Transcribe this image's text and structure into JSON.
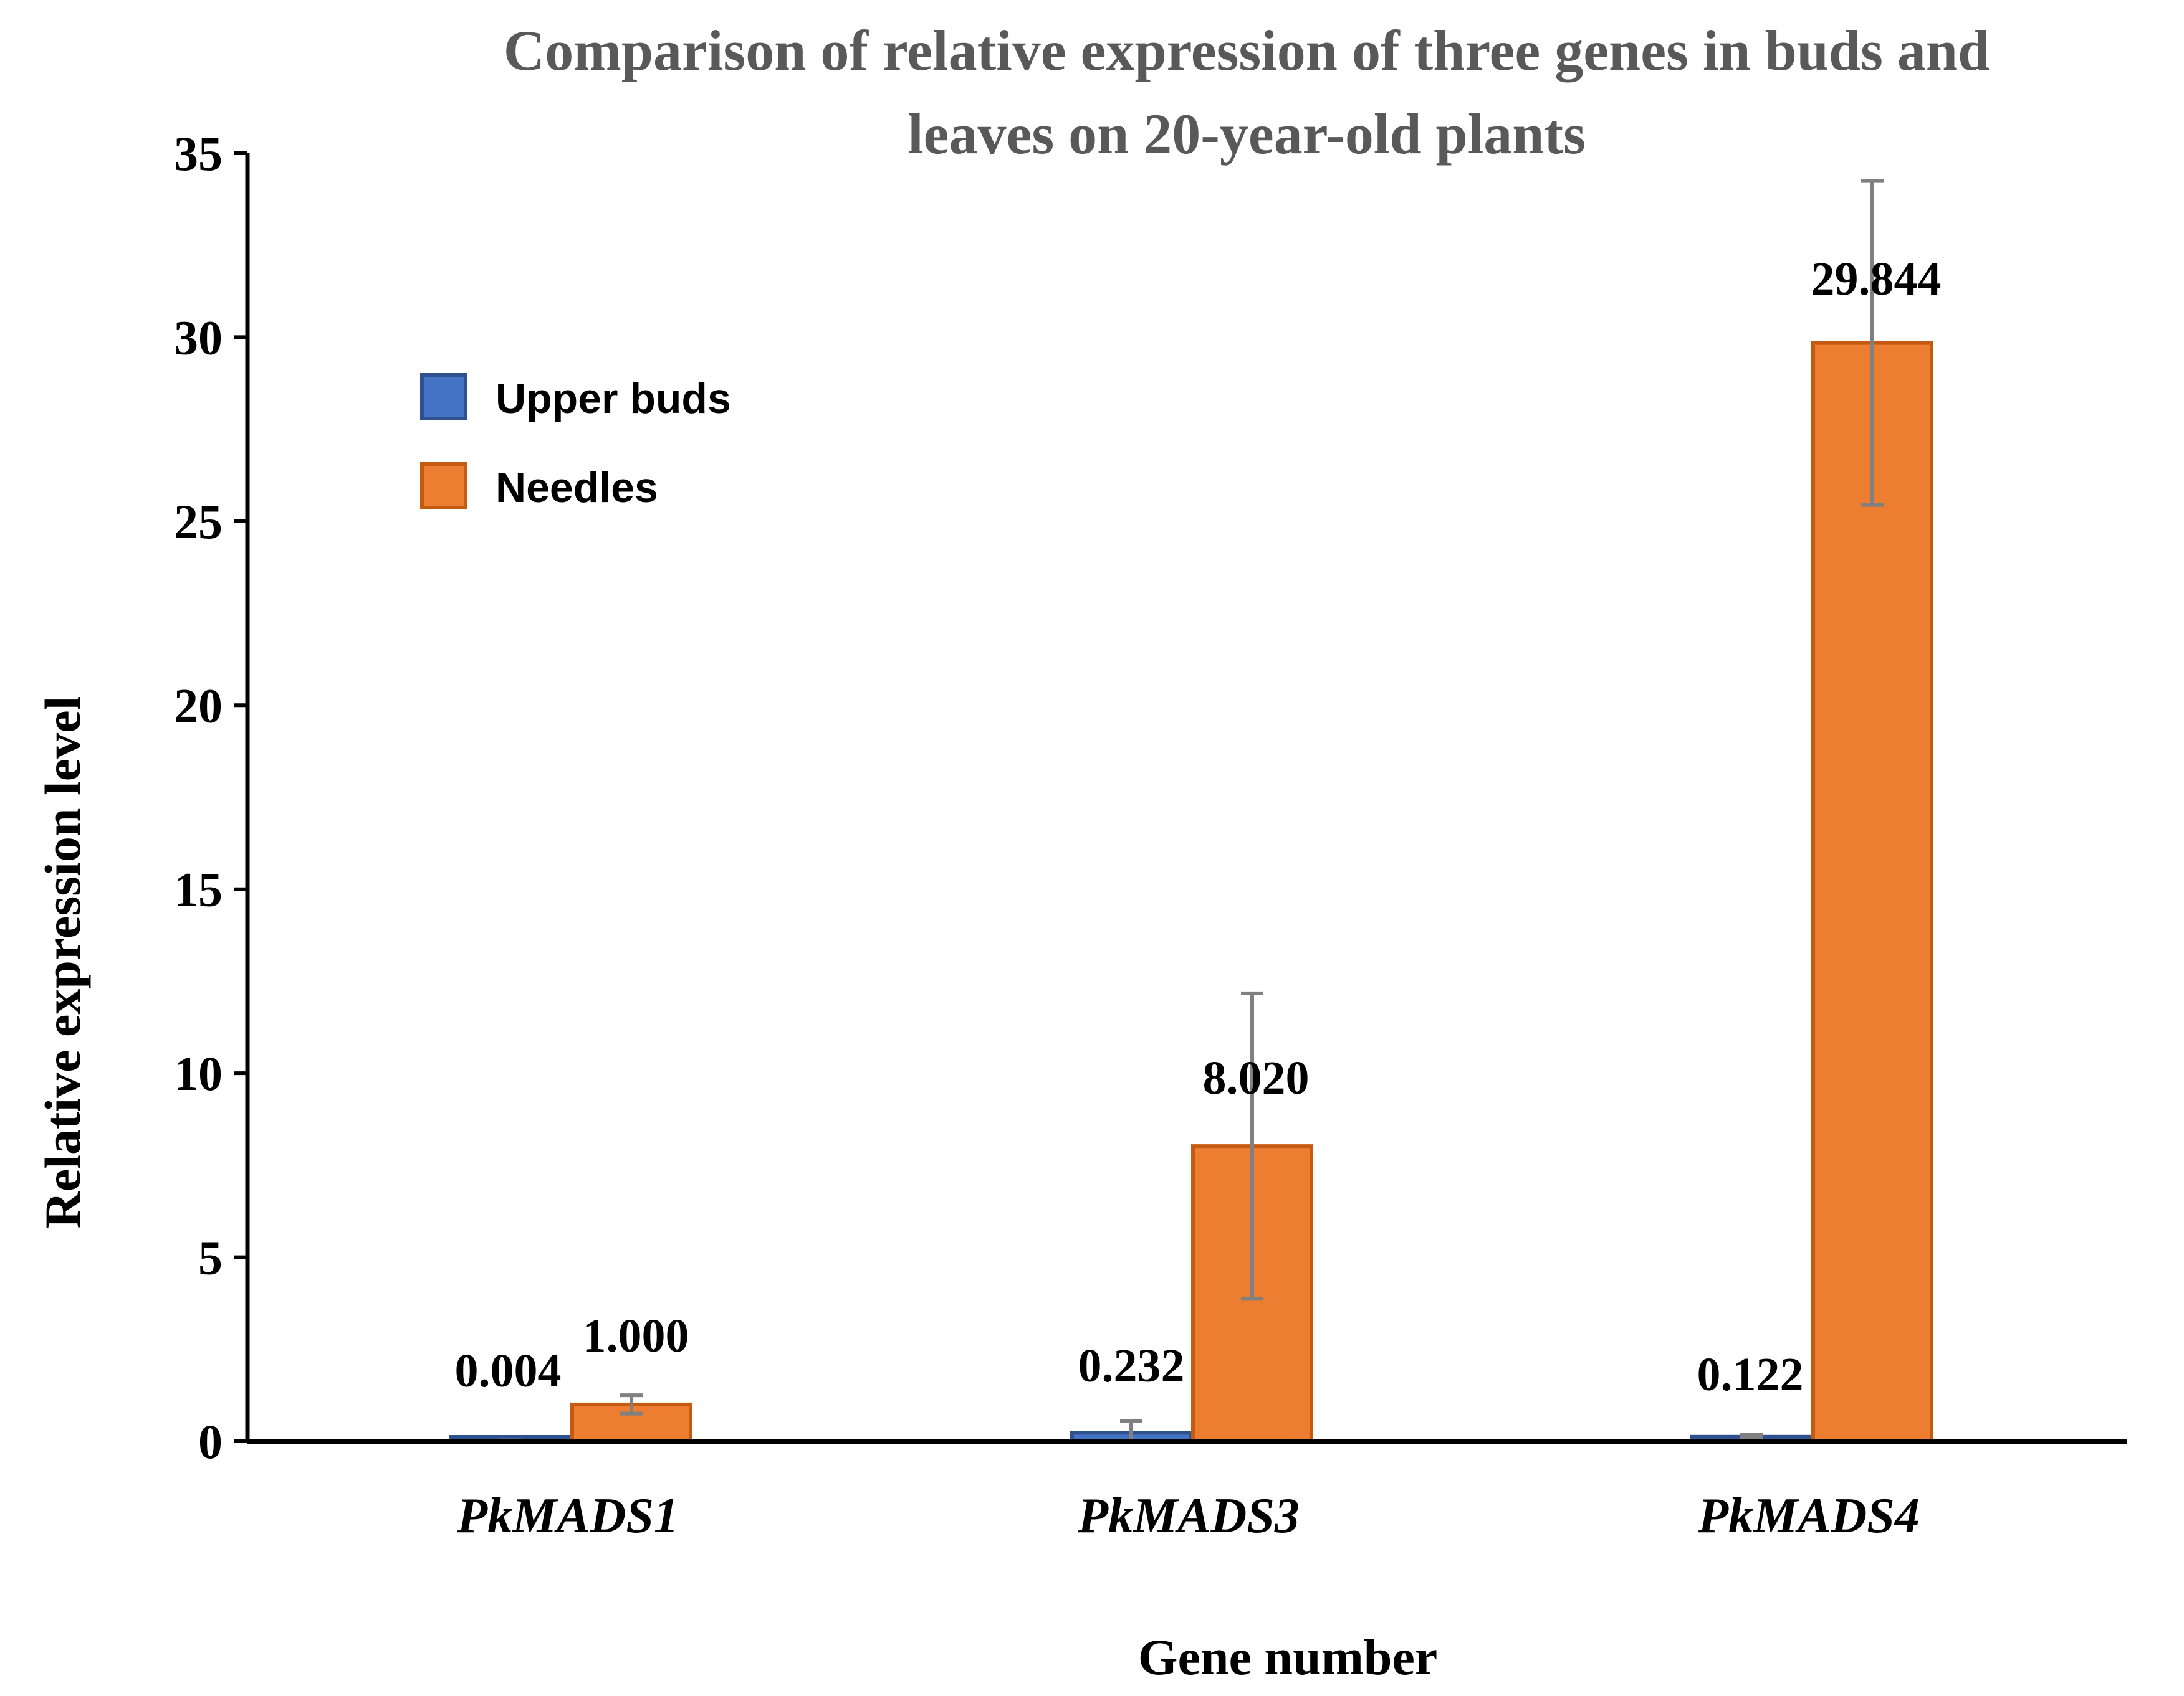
{
  "chart_data": {
    "type": "bar",
    "title": "Comparison of relative expression of three genes in buds and leaves on 20-year-old plants",
    "title_lines": [
      "Comparison of relative expression of three genes in buds and",
      "leaves on 20-year-old plants"
    ],
    "xlabel": "Gene number",
    "ylabel": "Relative expression level",
    "ylim": [
      0,
      35
    ],
    "yticks": [
      0,
      5,
      10,
      15,
      20,
      25,
      30,
      35
    ],
    "categories": [
      "PkMADS1",
      "PkMADS3",
      "PkMADS4"
    ],
    "series": [
      {
        "name": "Upper buds",
        "color": "#4472C4",
        "edge": "#2F528F",
        "values": [
          0.004,
          0.232,
          0.122
        ],
        "errors": [
          0.02,
          0.32,
          0.05
        ],
        "labels": [
          "0.004",
          "0.232",
          "0.122"
        ]
      },
      {
        "name": "Needles",
        "color": "#ED7D31",
        "edge": "#C55A11",
        "values": [
          1.0,
          8.02,
          29.844
        ],
        "errors": [
          0.25,
          4.15,
          4.4
        ],
        "labels": [
          "1.000",
          "8.020",
          "29.844"
        ]
      }
    ],
    "legend_position": "upper-left",
    "error_bar_color": "#808080",
    "grid": false
  }
}
